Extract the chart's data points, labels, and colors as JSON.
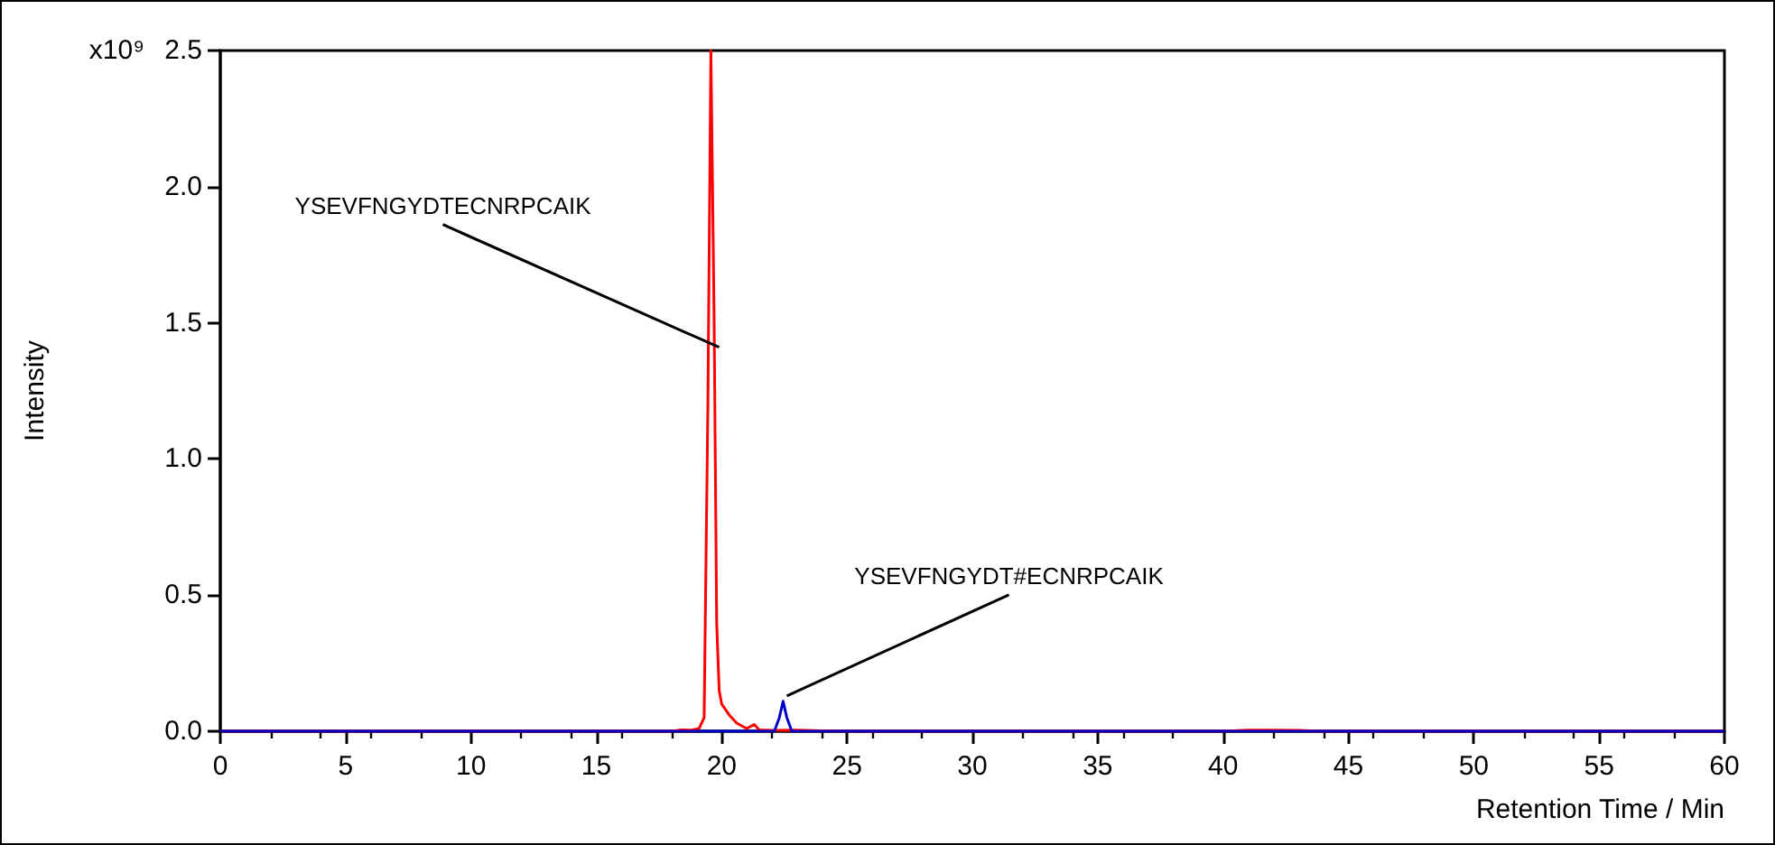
{
  "chart_data": {
    "type": "line",
    "xlabel": "Retention Time / Min",
    "ylabel": "Intensity",
    "xlim": [
      0,
      60
    ],
    "xticks": [
      0,
      5,
      10,
      15,
      20,
      25,
      30,
      35,
      40,
      45,
      50,
      55,
      60
    ],
    "ylim": [
      0,
      2.5
    ],
    "yticks": [
      {
        "value": 0,
        "label": "0.0"
      },
      {
        "value": 0.5,
        "label": "0.5"
      },
      {
        "value": 1,
        "label": "1.0"
      },
      {
        "value": 1.5,
        "label": "1.5"
      },
      {
        "value": 2,
        "label": "2.0"
      },
      {
        "value": 2.5,
        "label": "2.5"
      }
    ],
    "grid": false,
    "marker": "none",
    "line_style": "solid",
    "series": [
      {
        "color": "#ff0000",
        "x": [
          0,
          18.0,
          18.4,
          18.8,
          19.1,
          19.3,
          19.45,
          19.57,
          19.7,
          19.8,
          19.9,
          20.0,
          20.3,
          20.6,
          21.0,
          21.3,
          21.5,
          22.0,
          23.0,
          24.0,
          25.0,
          40.0,
          41.0,
          42.0,
          43.0,
          44.0,
          60
        ],
        "values": [
          0,
          0,
          0.005,
          0.004,
          0.01,
          0.05,
          1.2,
          2.5,
          1.5,
          0.4,
          0.15,
          0.1,
          0.06,
          0.03,
          0.01,
          0.025,
          0.005,
          0.003,
          0.004,
          0.002,
          0,
          0,
          0.004,
          0.004,
          0.003,
          0,
          0
        ]
      },
      {
        "color": "#0000cc",
        "x": [
          0,
          22.1,
          22.3,
          22.45,
          22.6,
          22.8,
          60
        ],
        "values": [
          0,
          0,
          0.05,
          0.11,
          0.05,
          0,
          0
        ]
      }
    ],
    "annotations": [
      "x10⁹",
      {
        "text": "YSEVFNGYDTECNRPCAIK",
        "x": 19.9,
        "y": 1.41
      },
      {
        "text": "YSEVFNGYDT#ECNRPCAIK",
        "x": 22.6,
        "y": 0.13
      }
    ]
  }
}
